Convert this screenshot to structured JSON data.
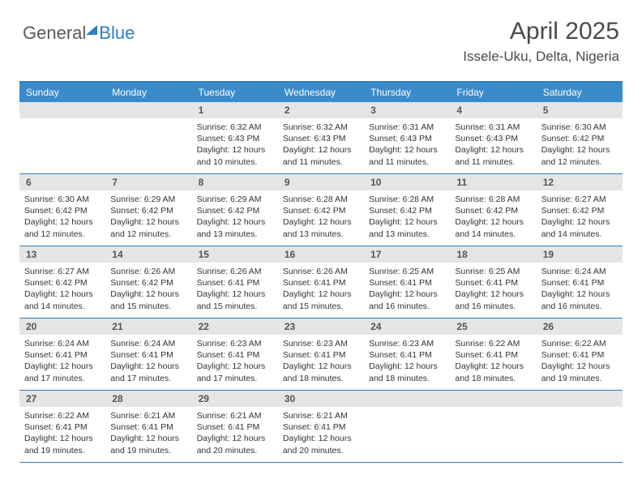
{
  "logo": {
    "part1": "General",
    "part2": "Blue"
  },
  "header": {
    "month": "April 2025",
    "location": "Issele-Uku, Delta, Nigeria"
  },
  "colors": {
    "accent": "#3a8bc9",
    "border": "#2d7fc1",
    "dayHeaderBg": "#e5e5e5",
    "bg": "#ffffff",
    "text": "#333333",
    "headerText": "#4a4a4a"
  },
  "calendar": {
    "type": "table",
    "weekdays": [
      "Sunday",
      "Monday",
      "Tuesday",
      "Wednesday",
      "Thursday",
      "Friday",
      "Saturday"
    ],
    "leadingBlanks": 2,
    "days": [
      {
        "n": 1,
        "sunrise": "6:32 AM",
        "sunset": "6:43 PM",
        "daylight": "12 hours and 10 minutes."
      },
      {
        "n": 2,
        "sunrise": "6:32 AM",
        "sunset": "6:43 PM",
        "daylight": "12 hours and 11 minutes."
      },
      {
        "n": 3,
        "sunrise": "6:31 AM",
        "sunset": "6:43 PM",
        "daylight": "12 hours and 11 minutes."
      },
      {
        "n": 4,
        "sunrise": "6:31 AM",
        "sunset": "6:43 PM",
        "daylight": "12 hours and 11 minutes."
      },
      {
        "n": 5,
        "sunrise": "6:30 AM",
        "sunset": "6:42 PM",
        "daylight": "12 hours and 12 minutes."
      },
      {
        "n": 6,
        "sunrise": "6:30 AM",
        "sunset": "6:42 PM",
        "daylight": "12 hours and 12 minutes."
      },
      {
        "n": 7,
        "sunrise": "6:29 AM",
        "sunset": "6:42 PM",
        "daylight": "12 hours and 12 minutes."
      },
      {
        "n": 8,
        "sunrise": "6:29 AM",
        "sunset": "6:42 PM",
        "daylight": "12 hours and 13 minutes."
      },
      {
        "n": 9,
        "sunrise": "6:28 AM",
        "sunset": "6:42 PM",
        "daylight": "12 hours and 13 minutes."
      },
      {
        "n": 10,
        "sunrise": "6:28 AM",
        "sunset": "6:42 PM",
        "daylight": "12 hours and 13 minutes."
      },
      {
        "n": 11,
        "sunrise": "6:28 AM",
        "sunset": "6:42 PM",
        "daylight": "12 hours and 14 minutes."
      },
      {
        "n": 12,
        "sunrise": "6:27 AM",
        "sunset": "6:42 PM",
        "daylight": "12 hours and 14 minutes."
      },
      {
        "n": 13,
        "sunrise": "6:27 AM",
        "sunset": "6:42 PM",
        "daylight": "12 hours and 14 minutes."
      },
      {
        "n": 14,
        "sunrise": "6:26 AM",
        "sunset": "6:42 PM",
        "daylight": "12 hours and 15 minutes."
      },
      {
        "n": 15,
        "sunrise": "6:26 AM",
        "sunset": "6:41 PM",
        "daylight": "12 hours and 15 minutes."
      },
      {
        "n": 16,
        "sunrise": "6:26 AM",
        "sunset": "6:41 PM",
        "daylight": "12 hours and 15 minutes."
      },
      {
        "n": 17,
        "sunrise": "6:25 AM",
        "sunset": "6:41 PM",
        "daylight": "12 hours and 16 minutes."
      },
      {
        "n": 18,
        "sunrise": "6:25 AM",
        "sunset": "6:41 PM",
        "daylight": "12 hours and 16 minutes."
      },
      {
        "n": 19,
        "sunrise": "6:24 AM",
        "sunset": "6:41 PM",
        "daylight": "12 hours and 16 minutes."
      },
      {
        "n": 20,
        "sunrise": "6:24 AM",
        "sunset": "6:41 PM",
        "daylight": "12 hours and 17 minutes."
      },
      {
        "n": 21,
        "sunrise": "6:24 AM",
        "sunset": "6:41 PM",
        "daylight": "12 hours and 17 minutes."
      },
      {
        "n": 22,
        "sunrise": "6:23 AM",
        "sunset": "6:41 PM",
        "daylight": "12 hours and 17 minutes."
      },
      {
        "n": 23,
        "sunrise": "6:23 AM",
        "sunset": "6:41 PM",
        "daylight": "12 hours and 18 minutes."
      },
      {
        "n": 24,
        "sunrise": "6:23 AM",
        "sunset": "6:41 PM",
        "daylight": "12 hours and 18 minutes."
      },
      {
        "n": 25,
        "sunrise": "6:22 AM",
        "sunset": "6:41 PM",
        "daylight": "12 hours and 18 minutes."
      },
      {
        "n": 26,
        "sunrise": "6:22 AM",
        "sunset": "6:41 PM",
        "daylight": "12 hours and 19 minutes."
      },
      {
        "n": 27,
        "sunrise": "6:22 AM",
        "sunset": "6:41 PM",
        "daylight": "12 hours and 19 minutes."
      },
      {
        "n": 28,
        "sunrise": "6:21 AM",
        "sunset": "6:41 PM",
        "daylight": "12 hours and 19 minutes."
      },
      {
        "n": 29,
        "sunrise": "6:21 AM",
        "sunset": "6:41 PM",
        "daylight": "12 hours and 20 minutes."
      },
      {
        "n": 30,
        "sunrise": "6:21 AM",
        "sunset": "6:41 PM",
        "daylight": "12 hours and 20 minutes."
      }
    ],
    "labels": {
      "sunrise": "Sunrise:",
      "sunset": "Sunset:",
      "daylight": "Daylight:"
    }
  }
}
